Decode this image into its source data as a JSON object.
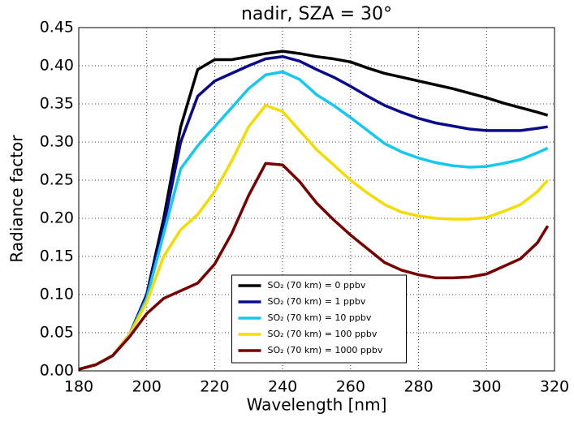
{
  "chart_data": {
    "type": "line",
    "title": "nadir, SZA = 30°",
    "x_label": "Wavelength [nm]",
    "y_label": "Radiance factor",
    "x": [
      180,
      185,
      190,
      195,
      200,
      205,
      210,
      215,
      220,
      225,
      230,
      235,
      240,
      245,
      250,
      255,
      260,
      265,
      270,
      275,
      280,
      285,
      290,
      295,
      300,
      305,
      310,
      315,
      318
    ],
    "series": [
      {
        "name": "SO₂ (70 km) = 0 ppbv",
        "color": "#000000",
        "values": [
          0.002,
          0.008,
          0.02,
          0.048,
          0.1,
          0.2,
          0.32,
          0.395,
          0.408,
          0.408,
          0.412,
          0.416,
          0.419,
          0.416,
          0.412,
          0.409,
          0.405,
          0.397,
          0.39,
          0.385,
          0.38,
          0.375,
          0.37,
          0.364,
          0.358,
          0.351,
          0.345,
          0.339,
          0.335
        ]
      },
      {
        "name": "SO₂ (70 km) = 1 ppbv",
        "color": "#0a0a8c",
        "values": [
          0.002,
          0.008,
          0.02,
          0.048,
          0.1,
          0.19,
          0.3,
          0.36,
          0.38,
          0.39,
          0.4,
          0.409,
          0.412,
          0.406,
          0.395,
          0.385,
          0.373,
          0.36,
          0.348,
          0.339,
          0.331,
          0.325,
          0.321,
          0.317,
          0.315,
          0.315,
          0.315,
          0.318,
          0.32
        ]
      },
      {
        "name": "SO₂ (70 km) = 10 ppbv",
        "color": "#14c8f0",
        "values": [
          0.002,
          0.008,
          0.02,
          0.048,
          0.095,
          0.18,
          0.265,
          0.295,
          0.32,
          0.345,
          0.37,
          0.388,
          0.392,
          0.382,
          0.362,
          0.348,
          0.332,
          0.315,
          0.298,
          0.287,
          0.279,
          0.273,
          0.269,
          0.267,
          0.268,
          0.272,
          0.277,
          0.286,
          0.292
        ]
      },
      {
        "name": "SO₂ (70 km) = 100 ppbv",
        "color": "#f5dc00",
        "values": [
          0.002,
          0.008,
          0.02,
          0.048,
          0.09,
          0.15,
          0.185,
          0.205,
          0.235,
          0.275,
          0.32,
          0.348,
          0.34,
          0.315,
          0.29,
          0.27,
          0.25,
          0.233,
          0.218,
          0.208,
          0.203,
          0.2,
          0.199,
          0.199,
          0.201,
          0.209,
          0.218,
          0.235,
          0.25
        ]
      },
      {
        "name": "SO₂ (70 km) = 1000 ppbv",
        "color": "#780000",
        "values": [
          0.002,
          0.008,
          0.02,
          0.045,
          0.075,
          0.095,
          0.105,
          0.115,
          0.14,
          0.18,
          0.23,
          0.272,
          0.27,
          0.248,
          0.22,
          0.198,
          0.178,
          0.16,
          0.142,
          0.132,
          0.126,
          0.122,
          0.122,
          0.123,
          0.127,
          0.137,
          0.147,
          0.168,
          0.19
        ]
      }
    ],
    "xlim": [
      180,
      320
    ],
    "xticks": [
      180,
      200,
      220,
      240,
      260,
      280,
      300,
      320
    ],
    "ylim": [
      0,
      0.45
    ],
    "yticks": [
      {
        "value": 0,
        "label": "0.00"
      },
      {
        "value": 0.05,
        "label": "0.05"
      },
      {
        "value": 0.1,
        "label": "0.10"
      },
      {
        "value": 0.15,
        "label": "0.15"
      },
      {
        "value": 0.2,
        "label": "0.20"
      },
      {
        "value": 0.25,
        "label": "0.25"
      },
      {
        "value": 0.3,
        "label": "0.30"
      },
      {
        "value": 0.35,
        "label": "0.35"
      },
      {
        "value": 0.4,
        "label": "0.40"
      },
      {
        "value": 0.45,
        "label": "0.45"
      }
    ],
    "grid": true,
    "legend": "lower center"
  }
}
